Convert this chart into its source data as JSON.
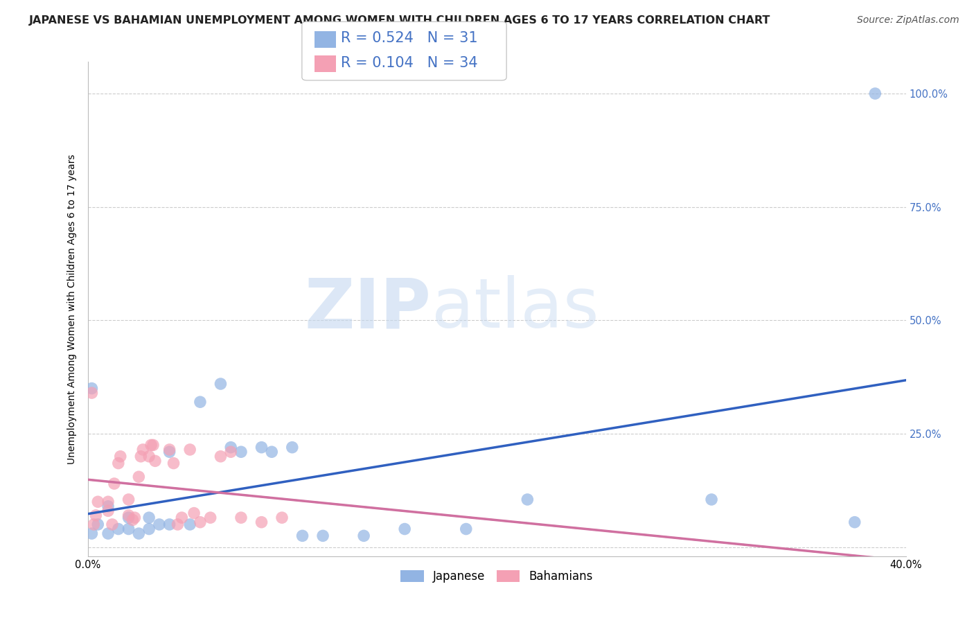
{
  "title": "JAPANESE VS BAHAMIAN UNEMPLOYMENT AMONG WOMEN WITH CHILDREN AGES 6 TO 17 YEARS CORRELATION CHART",
  "source": "Source: ZipAtlas.com",
  "ylabel": "Unemployment Among Women with Children Ages 6 to 17 years",
  "xlabel": "",
  "xlim": [
    0.0,
    0.4
  ],
  "ylim": [
    -0.02,
    1.07
  ],
  "xticks": [
    0.0,
    0.05,
    0.1,
    0.15,
    0.2,
    0.25,
    0.3,
    0.35,
    0.4
  ],
  "xticklabels": [
    "0.0%",
    "",
    "",
    "",
    "",
    "",
    "",
    "",
    "40.0%"
  ],
  "ytick_positions": [
    0.0,
    0.25,
    0.5,
    0.75,
    1.0
  ],
  "yticklabels_right": [
    "",
    "25.0%",
    "50.0%",
    "75.0%",
    "100.0%"
  ],
  "watermark": "ZIPatlas",
  "legend_R_japanese": "R = 0.524",
  "legend_N_japanese": "N = 31",
  "legend_R_bahamian": "R = 0.104",
  "legend_N_bahamian": "N = 34",
  "japanese_color": "#92b4e3",
  "bahamian_color": "#f4a0b4",
  "japanese_line_color": "#3060c0",
  "bahamian_line_color": "#d070a0",
  "bahamian_dash_color": "#d0a0b8",
  "japanese_scatter": [
    [
      0.002,
      0.35
    ],
    [
      0.002,
      0.03
    ],
    [
      0.005,
      0.05
    ],
    [
      0.01,
      0.03
    ],
    [
      0.01,
      0.09
    ],
    [
      0.015,
      0.04
    ],
    [
      0.02,
      0.04
    ],
    [
      0.02,
      0.065
    ],
    [
      0.025,
      0.03
    ],
    [
      0.03,
      0.065
    ],
    [
      0.03,
      0.04
    ],
    [
      0.035,
      0.05
    ],
    [
      0.04,
      0.05
    ],
    [
      0.04,
      0.21
    ],
    [
      0.05,
      0.05
    ],
    [
      0.055,
      0.32
    ],
    [
      0.065,
      0.36
    ],
    [
      0.07,
      0.22
    ],
    [
      0.075,
      0.21
    ],
    [
      0.085,
      0.22
    ],
    [
      0.09,
      0.21
    ],
    [
      0.1,
      0.22
    ],
    [
      0.105,
      0.025
    ],
    [
      0.115,
      0.025
    ],
    [
      0.135,
      0.025
    ],
    [
      0.155,
      0.04
    ],
    [
      0.185,
      0.04
    ],
    [
      0.215,
      0.105
    ],
    [
      0.305,
      0.105
    ],
    [
      0.375,
      0.055
    ],
    [
      0.385,
      1.0
    ]
  ],
  "bahamian_scatter": [
    [
      0.002,
      0.34
    ],
    [
      0.003,
      0.05
    ],
    [
      0.004,
      0.07
    ],
    [
      0.005,
      0.1
    ],
    [
      0.01,
      0.08
    ],
    [
      0.01,
      0.1
    ],
    [
      0.012,
      0.05
    ],
    [
      0.013,
      0.14
    ],
    [
      0.015,
      0.185
    ],
    [
      0.016,
      0.2
    ],
    [
      0.02,
      0.07
    ],
    [
      0.02,
      0.105
    ],
    [
      0.022,
      0.06
    ],
    [
      0.023,
      0.065
    ],
    [
      0.025,
      0.155
    ],
    [
      0.026,
      0.2
    ],
    [
      0.027,
      0.215
    ],
    [
      0.03,
      0.2
    ],
    [
      0.031,
      0.225
    ],
    [
      0.032,
      0.225
    ],
    [
      0.033,
      0.19
    ],
    [
      0.04,
      0.215
    ],
    [
      0.042,
      0.185
    ],
    [
      0.044,
      0.05
    ],
    [
      0.046,
      0.065
    ],
    [
      0.05,
      0.215
    ],
    [
      0.052,
      0.075
    ],
    [
      0.055,
      0.055
    ],
    [
      0.06,
      0.065
    ],
    [
      0.065,
      0.2
    ],
    [
      0.07,
      0.21
    ],
    [
      0.075,
      0.065
    ],
    [
      0.085,
      0.055
    ],
    [
      0.095,
      0.065
    ]
  ],
  "background_color": "#ffffff",
  "title_fontsize": 11.5,
  "axis_label_fontsize": 10,
  "tick_fontsize": 10.5,
  "legend_fontsize": 15,
  "source_fontsize": 10
}
